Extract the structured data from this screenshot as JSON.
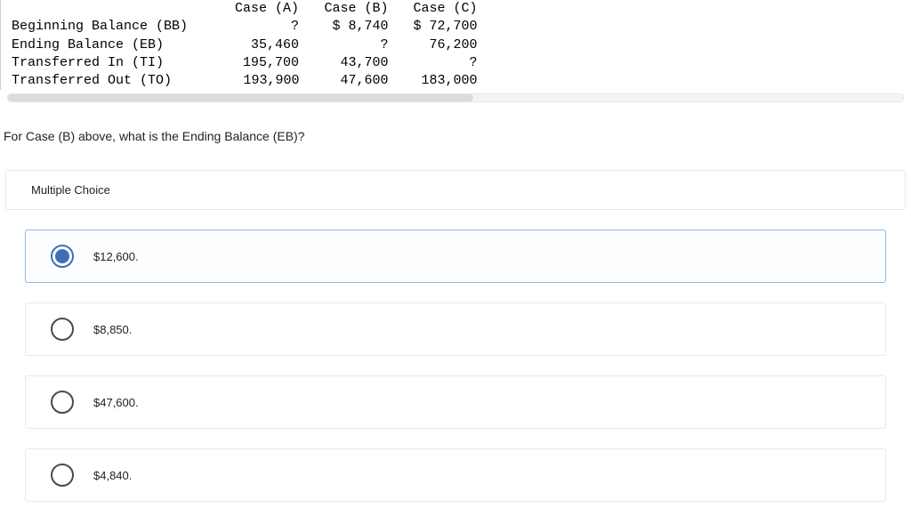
{
  "table": {
    "columns": [
      "",
      "Case (A)",
      "Case (B)",
      "Case (C)"
    ],
    "rows": [
      {
        "label": "Beginning Balance (BB)",
        "a": "?",
        "b": "$ 8,740",
        "c": "$ 72,700"
      },
      {
        "label": "Ending Balance (EB)",
        "a": "35,460",
        "b": "?",
        "c": "76,200"
      },
      {
        "label": "Transferred In (TI)",
        "a": "195,700",
        "b": "43,700",
        "c": "?"
      },
      {
        "label": "Transferred Out (TO)",
        "a": "193,900",
        "b": "47,600",
        "c": "183,000"
      }
    ]
  },
  "question": "For Case (B) above, what is the Ending Balance (EB)?",
  "mc_label": "Multiple Choice",
  "choices": [
    {
      "text": "$12,600.",
      "selected": true
    },
    {
      "text": "$8,850.",
      "selected": false
    },
    {
      "text": "$47,600.",
      "selected": false
    },
    {
      "text": "$4,840.",
      "selected": false
    }
  ],
  "colors": {
    "selected_border": "#8fb8e8",
    "radio_fill": "#3d6fb5"
  }
}
